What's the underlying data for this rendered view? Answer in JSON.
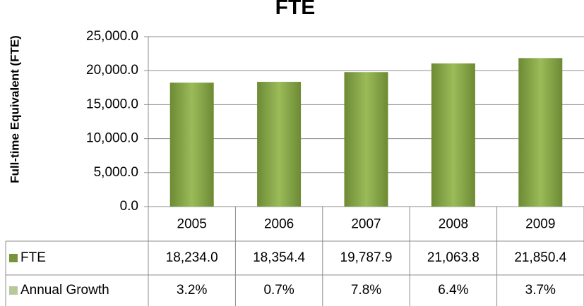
{
  "chart_data": {
    "type": "bar",
    "title": "FTE",
    "y_axis_label": "Full-time Equivalent (FTE)",
    "categories": [
      "2005",
      "2006",
      "2007",
      "2008",
      "2009"
    ],
    "series": [
      {
        "name": "FTE",
        "color": "#77933c",
        "values": [
          18234.0,
          18354.4,
          19787.9,
          21063.8,
          21850.4
        ],
        "value_labels": [
          "18,234.0",
          "18,354.4",
          "19,787.9",
          "21,063.8",
          "21,850.4"
        ]
      },
      {
        "name": "Annual Growth",
        "color": "#b5c99a",
        "values": [
          3.2,
          0.7,
          7.8,
          6.4,
          3.7
        ],
        "value_labels": [
          "3.2%",
          "0.7%",
          "7.8%",
          "6.4%",
          "3.7%"
        ]
      }
    ],
    "ylim": [
      0,
      25000
    ],
    "yticks": [
      {
        "value": 0,
        "label": "0.0"
      },
      {
        "value": 5000,
        "label": "5,000.0"
      },
      {
        "value": 10000,
        "label": "10,000.0"
      },
      {
        "value": 15000,
        "label": "15,000.0"
      },
      {
        "value": 20000,
        "label": "20,000.0"
      },
      {
        "value": 25000,
        "label": "25,000.0"
      }
    ],
    "grid": true,
    "data_table": true
  }
}
